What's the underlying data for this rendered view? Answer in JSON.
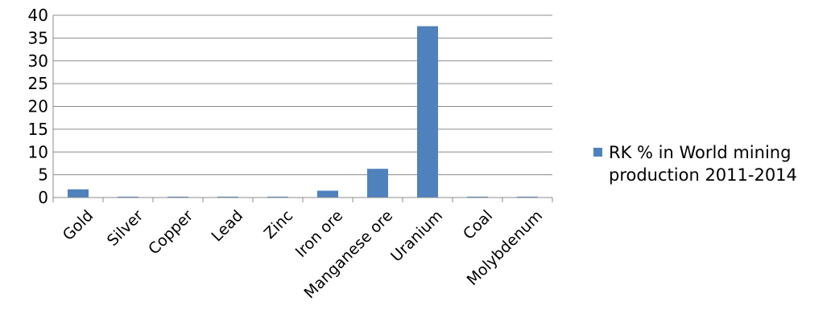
{
  "chart_data": {
    "type": "bar",
    "categories": [
      "Gold",
      "Silver",
      "Copper",
      "Lead",
      "Zinc",
      "Iron ore",
      "Manganese ore",
      "Uranium",
      "Coal",
      "Molybdenum"
    ],
    "series": [
      {
        "name": "RK % in World mining production 2011-2014",
        "values": [
          1.8,
          0.2,
          0.2,
          0.2,
          0.2,
          1.5,
          6.3,
          37.6,
          0.2,
          0.2
        ],
        "color": "#4f81bd"
      }
    ],
    "title": "",
    "xlabel": "",
    "ylabel": "",
    "ylim": [
      0,
      40
    ],
    "yticks": [
      "0",
      "5",
      "10",
      "15",
      "20",
      "25",
      "30",
      "35",
      "40"
    ],
    "grid": true,
    "legend_position": "right"
  },
  "legend": {
    "line1": "RK % in World mining",
    "line2": "production 2011-2014"
  }
}
